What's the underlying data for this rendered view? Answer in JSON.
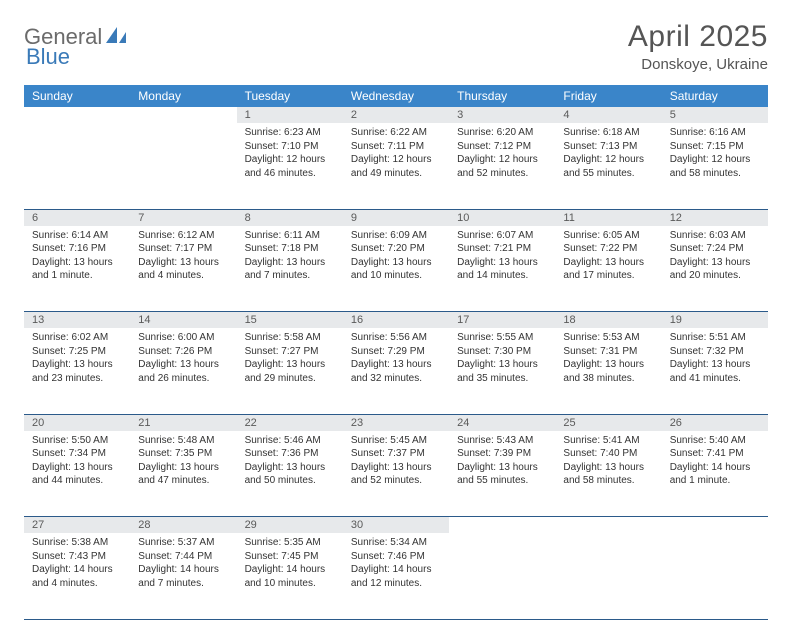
{
  "brand": {
    "part1": "General",
    "part2": "Blue"
  },
  "title": "April 2025",
  "location": "Donskoye, Ukraine",
  "colors": {
    "header_bg": "#3a85c9",
    "header_text": "#ffffff",
    "daynum_bg": "#e7e9eb",
    "row_border": "#2b5a8a",
    "brand_gray": "#6b6b6b",
    "brand_blue": "#3a7ab8"
  },
  "weekdays": [
    "Sunday",
    "Monday",
    "Tuesday",
    "Wednesday",
    "Thursday",
    "Friday",
    "Saturday"
  ],
  "weeks": [
    [
      null,
      null,
      {
        "n": "1",
        "sunrise": "6:23 AM",
        "sunset": "7:10 PM",
        "daylight": "12 hours and 46 minutes."
      },
      {
        "n": "2",
        "sunrise": "6:22 AM",
        "sunset": "7:11 PM",
        "daylight": "12 hours and 49 minutes."
      },
      {
        "n": "3",
        "sunrise": "6:20 AM",
        "sunset": "7:12 PM",
        "daylight": "12 hours and 52 minutes."
      },
      {
        "n": "4",
        "sunrise": "6:18 AM",
        "sunset": "7:13 PM",
        "daylight": "12 hours and 55 minutes."
      },
      {
        "n": "5",
        "sunrise": "6:16 AM",
        "sunset": "7:15 PM",
        "daylight": "12 hours and 58 minutes."
      }
    ],
    [
      {
        "n": "6",
        "sunrise": "6:14 AM",
        "sunset": "7:16 PM",
        "daylight": "13 hours and 1 minute."
      },
      {
        "n": "7",
        "sunrise": "6:12 AM",
        "sunset": "7:17 PM",
        "daylight": "13 hours and 4 minutes."
      },
      {
        "n": "8",
        "sunrise": "6:11 AM",
        "sunset": "7:18 PM",
        "daylight": "13 hours and 7 minutes."
      },
      {
        "n": "9",
        "sunrise": "6:09 AM",
        "sunset": "7:20 PM",
        "daylight": "13 hours and 10 minutes."
      },
      {
        "n": "10",
        "sunrise": "6:07 AM",
        "sunset": "7:21 PM",
        "daylight": "13 hours and 14 minutes."
      },
      {
        "n": "11",
        "sunrise": "6:05 AM",
        "sunset": "7:22 PM",
        "daylight": "13 hours and 17 minutes."
      },
      {
        "n": "12",
        "sunrise": "6:03 AM",
        "sunset": "7:24 PM",
        "daylight": "13 hours and 20 minutes."
      }
    ],
    [
      {
        "n": "13",
        "sunrise": "6:02 AM",
        "sunset": "7:25 PM",
        "daylight": "13 hours and 23 minutes."
      },
      {
        "n": "14",
        "sunrise": "6:00 AM",
        "sunset": "7:26 PM",
        "daylight": "13 hours and 26 minutes."
      },
      {
        "n": "15",
        "sunrise": "5:58 AM",
        "sunset": "7:27 PM",
        "daylight": "13 hours and 29 minutes."
      },
      {
        "n": "16",
        "sunrise": "5:56 AM",
        "sunset": "7:29 PM",
        "daylight": "13 hours and 32 minutes."
      },
      {
        "n": "17",
        "sunrise": "5:55 AM",
        "sunset": "7:30 PM",
        "daylight": "13 hours and 35 minutes."
      },
      {
        "n": "18",
        "sunrise": "5:53 AM",
        "sunset": "7:31 PM",
        "daylight": "13 hours and 38 minutes."
      },
      {
        "n": "19",
        "sunrise": "5:51 AM",
        "sunset": "7:32 PM",
        "daylight": "13 hours and 41 minutes."
      }
    ],
    [
      {
        "n": "20",
        "sunrise": "5:50 AM",
        "sunset": "7:34 PM",
        "daylight": "13 hours and 44 minutes."
      },
      {
        "n": "21",
        "sunrise": "5:48 AM",
        "sunset": "7:35 PM",
        "daylight": "13 hours and 47 minutes."
      },
      {
        "n": "22",
        "sunrise": "5:46 AM",
        "sunset": "7:36 PM",
        "daylight": "13 hours and 50 minutes."
      },
      {
        "n": "23",
        "sunrise": "5:45 AM",
        "sunset": "7:37 PM",
        "daylight": "13 hours and 52 minutes."
      },
      {
        "n": "24",
        "sunrise": "5:43 AM",
        "sunset": "7:39 PM",
        "daylight": "13 hours and 55 minutes."
      },
      {
        "n": "25",
        "sunrise": "5:41 AM",
        "sunset": "7:40 PM",
        "daylight": "13 hours and 58 minutes."
      },
      {
        "n": "26",
        "sunrise": "5:40 AM",
        "sunset": "7:41 PM",
        "daylight": "14 hours and 1 minute."
      }
    ],
    [
      {
        "n": "27",
        "sunrise": "5:38 AM",
        "sunset": "7:43 PM",
        "daylight": "14 hours and 4 minutes."
      },
      {
        "n": "28",
        "sunrise": "5:37 AM",
        "sunset": "7:44 PM",
        "daylight": "14 hours and 7 minutes."
      },
      {
        "n": "29",
        "sunrise": "5:35 AM",
        "sunset": "7:45 PM",
        "daylight": "14 hours and 10 minutes."
      },
      {
        "n": "30",
        "sunrise": "5:34 AM",
        "sunset": "7:46 PM",
        "daylight": "14 hours and 12 minutes."
      },
      null,
      null,
      null
    ]
  ],
  "labels": {
    "sunrise": "Sunrise:",
    "sunset": "Sunset:",
    "daylight": "Daylight:"
  }
}
